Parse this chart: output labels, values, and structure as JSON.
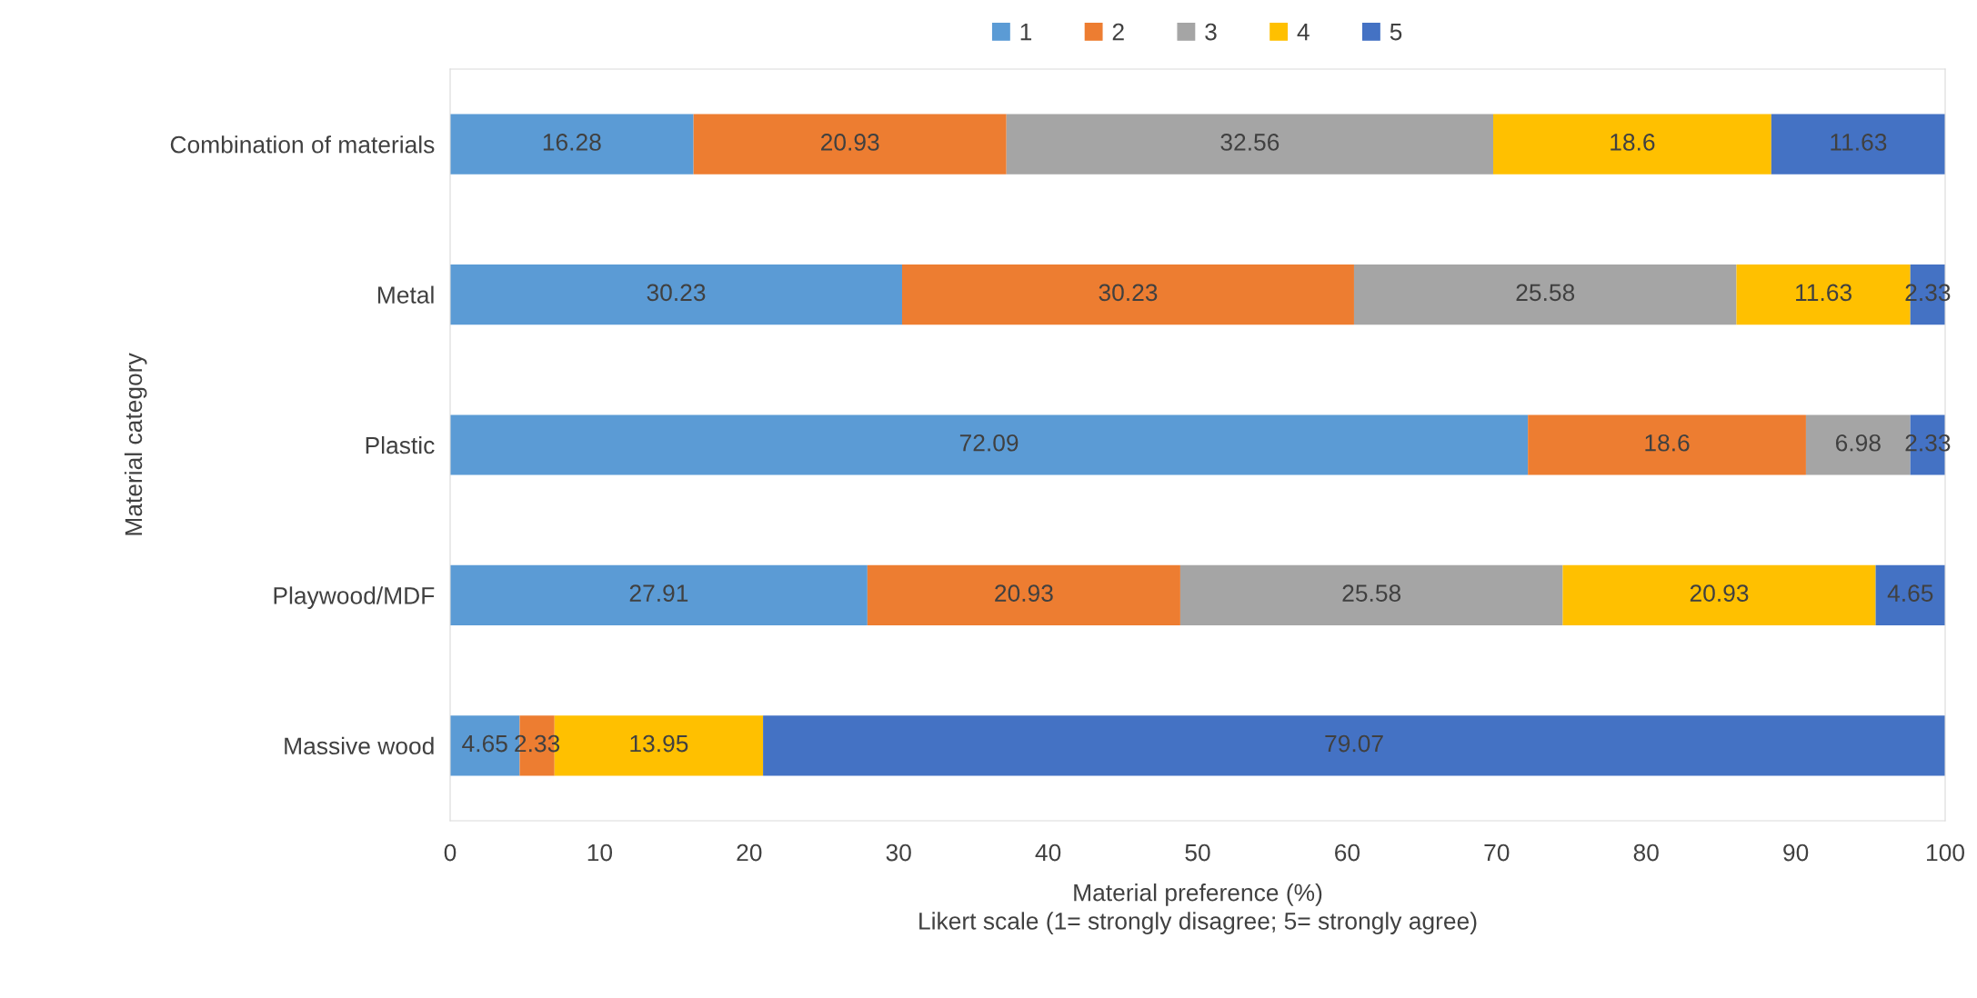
{
  "chart_data": {
    "type": "bar",
    "orientation": "horizontal",
    "stacked": true,
    "data_labels": true,
    "categories": [
      "Combination of materials",
      "Metal",
      "Plastic",
      "Playwood/MDF",
      "Massive wood"
    ],
    "series": [
      {
        "name": "1",
        "color": "#5b9bd5",
        "values": [
          16.28,
          30.23,
          72.09,
          27.91,
          4.65
        ]
      },
      {
        "name": "2",
        "color": "#ed7d31",
        "values": [
          20.93,
          30.23,
          18.6,
          20.93,
          2.33
        ]
      },
      {
        "name": "3",
        "color": "#a5a5a5",
        "values": [
          32.56,
          25.58,
          6.98,
          25.58,
          null
        ]
      },
      {
        "name": "4",
        "color": "#ffc000",
        "values": [
          18.6,
          11.63,
          null,
          20.93,
          13.95
        ]
      },
      {
        "name": "5",
        "color": "#4472c4",
        "values": [
          11.63,
          2.33,
          2.33,
          4.65,
          79.07
        ]
      }
    ],
    "xlabel": "Material preference (%)\nLikert scale (1= strongly disagree; 5= strongly agree)",
    "ylabel": "Material category",
    "xlim": [
      0,
      100
    ],
    "xticks": [
      0,
      10,
      20,
      30,
      40,
      50,
      60,
      70,
      80,
      90,
      100
    ],
    "grid": false,
    "legend": "top"
  }
}
